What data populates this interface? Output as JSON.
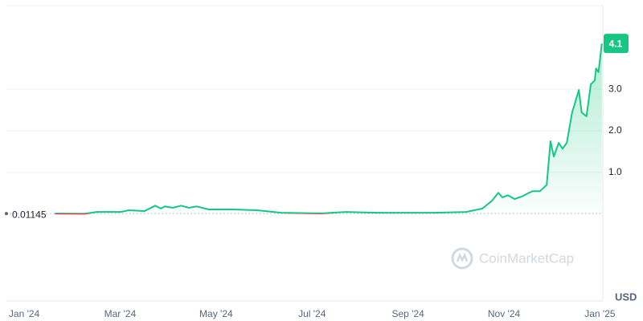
{
  "chart_data": {
    "type": "line",
    "x": [
      0.64,
      1.26,
      1.51,
      2.01,
      2.18,
      2.51,
      2.73,
      2.85,
      2.93,
      3.1,
      3.27,
      3.43,
      3.6,
      3.85,
      4.36,
      4.86,
      5.36,
      6.2,
      6.7,
      7.37,
      8.54,
      9.21,
      9.55,
      9.75,
      9.88,
      9.97,
      10.08,
      10.22,
      10.39,
      10.52,
      10.6,
      10.75,
      10.89,
      10.97,
      11.04,
      11.14,
      11.22,
      11.31,
      11.42,
      11.56,
      11.62,
      11.72,
      11.81,
      11.89,
      11.92,
      11.97,
      12.04
    ],
    "values": [
      0.01145,
      0.005,
      0.05,
      0.05,
      0.09,
      0.07,
      0.2,
      0.13,
      0.18,
      0.15,
      0.2,
      0.15,
      0.18,
      0.11,
      0.11,
      0.09,
      0.03,
      0.015,
      0.05,
      0.03,
      0.03,
      0.05,
      0.13,
      0.32,
      0.51,
      0.4,
      0.45,
      0.36,
      0.43,
      0.51,
      0.55,
      0.55,
      0.7,
      1.75,
      1.38,
      1.71,
      1.57,
      1.71,
      2.44,
      2.98,
      2.44,
      2.35,
      3.12,
      3.21,
      3.5,
      3.41,
      4.1
    ],
    "color": "#16c784",
    "down_color": "#ea3943",
    "xlim": [
      -0.37,
      12.06
    ],
    "xticks": [
      {
        "value": 0,
        "label": "Jan '24"
      },
      {
        "value": 2,
        "label": "Mar '24"
      },
      {
        "value": 4,
        "label": "May '24"
      },
      {
        "value": 6,
        "label": "Jul '24"
      },
      {
        "value": 8,
        "label": "Sep '24"
      },
      {
        "value": 10,
        "label": "Nov '24"
      },
      {
        "value": 12,
        "label": "Jan '25"
      }
    ],
    "ylim": [
      -2.09,
      5.01
    ],
    "yticks": [
      {
        "value": 1,
        "label": "1.0"
      },
      {
        "value": 2,
        "label": "2.0"
      },
      {
        "value": 3,
        "label": "3.0"
      }
    ],
    "grid": true,
    "y_label": "USD",
    "reference": {
      "value": 0.01145,
      "label": "0.01145"
    },
    "current_price": 4.1,
    "watermark": "CoinMarketCap"
  }
}
